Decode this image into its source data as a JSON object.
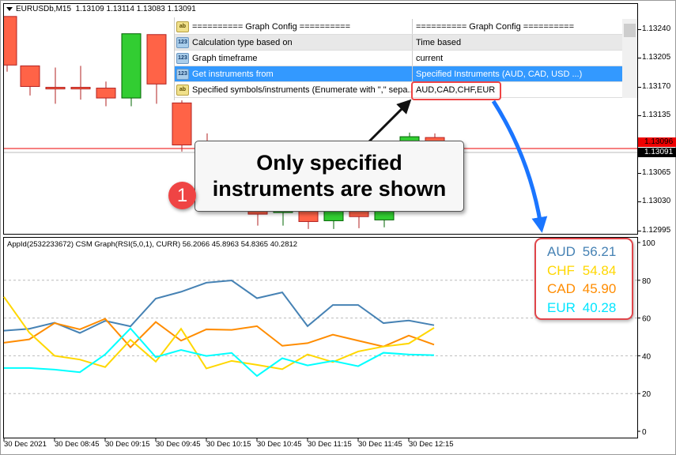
{
  "chart_header": {
    "symbol": "EURUSDb,M15",
    "ohlc": "1.13109 1.13114 1.13083 1.13091"
  },
  "price_axis": {
    "ticks": [
      "1.13240",
      "1.13205",
      "1.13170",
      "1.13135",
      "1.13065",
      "1.13030",
      "1.12995"
    ],
    "bid_label": "1.13096",
    "current_label": "1.13091"
  },
  "colors": {
    "bull": "#32cd32",
    "bear": "#ff6347",
    "AUD": "#4682b4",
    "CHF": "#ffd700",
    "CAD": "#ff8c00",
    "EUR": "#00ffff",
    "highlight": "#ef4444",
    "arrow": "#1a75ff"
  },
  "price_chart": {
    "type": "candlestick",
    "candles": [
      {
        "o": 1.13256,
        "h": 1.13256,
        "l": 1.13189,
        "c": 1.13197
      },
      {
        "o": 1.13196,
        "h": 1.13196,
        "l": 1.1316,
        "c": 1.13171
      },
      {
        "o": 1.1317,
        "h": 1.13194,
        "l": 1.1315,
        "c": 1.13168
      },
      {
        "o": 1.1317,
        "h": 1.13196,
        "l": 1.13155,
        "c": 1.13168
      },
      {
        "o": 1.13169,
        "h": 1.13177,
        "l": 1.13147,
        "c": 1.13157
      },
      {
        "o": 1.13157,
        "h": 1.13235,
        "l": 1.13147,
        "c": 1.13235
      },
      {
        "o": 1.13234,
        "h": 1.13234,
        "l": 1.1315,
        "c": 1.13174
      },
      {
        "o": 1.13151,
        "h": 1.13156,
        "l": 1.13092,
        "c": 1.131
      },
      {
        "o": 1.13099,
        "h": 1.13114,
        "l": 1.13085,
        "c": 1.13093
      },
      {
        "o": 1.13088,
        "h": 1.13105,
        "l": 1.1308,
        "c": 1.13098
      },
      {
        "o": 1.1304,
        "h": 1.1305,
        "l": 1.13002,
        "c": 1.13016
      },
      {
        "o": 1.13018,
        "h": 1.1304,
        "l": 1.13002,
        "c": 1.1303
      },
      {
        "o": 1.13021,
        "h": 1.1303,
        "l": 1.12998,
        "c": 1.13007
      },
      {
        "o": 1.13008,
        "h": 1.13025,
        "l": 1.12998,
        "c": 1.13021
      },
      {
        "o": 1.13021,
        "h": 1.1303,
        "l": 1.12999,
        "c": 1.13013
      },
      {
        "o": 1.13009,
        "h": 1.1303,
        "l": 1.13,
        "c": 1.13021
      },
      {
        "o": 1.13085,
        "h": 1.13115,
        "l": 1.1308,
        "c": 1.1311
      },
      {
        "o": 1.13109,
        "h": 1.13114,
        "l": 1.13083,
        "c": 1.13091
      }
    ]
  },
  "config_panel": {
    "rows": [
      {
        "icon": "ab",
        "name": "========== Graph Config ==========",
        "value": "========== Graph Config =========="
      },
      {
        "icon": "123",
        "name": "Calculation type based on",
        "value": "Time based"
      },
      {
        "icon": "123",
        "name": "Graph timeframe",
        "value": "current"
      },
      {
        "icon": "123",
        "name": "Get instruments from",
        "value": "Specified Instruments (AUD, CAD, USD ...)"
      },
      {
        "icon": "ab",
        "name": "Specified symbols/instruments (Enumerate with \",\" sepa...",
        "value": "AUD,CAD,CHF,EUR"
      }
    ]
  },
  "callout": {
    "line1": "Only specified",
    "line2": "instruments are shown",
    "badge": "1"
  },
  "indicator": {
    "title": "AppId(2532233672) CSM Graph(RSI(5,0,1), CURR) 56.2066 45.8963 54.8365 40.2812"
  },
  "legend": [
    {
      "currency": "AUD",
      "value": "56.21"
    },
    {
      "currency": "CHF",
      "value": "54.84"
    },
    {
      "currency": "CAD",
      "value": "45.90"
    },
    {
      "currency": "EUR",
      "value": "40.28"
    }
  ],
  "chart_data": {
    "type": "line",
    "ylim": [
      0,
      100
    ],
    "y_ticks": [
      "100",
      "80",
      "60",
      "40",
      "20",
      "0"
    ],
    "grid": true,
    "x_tick_labels": [
      "30 Dec 2021",
      "30 Dec 08:45",
      "30 Dec 09:15",
      "30 Dec 09:45",
      "30 Dec 10:15",
      "30 Dec 10:45",
      "30 Dec 11:15",
      "30 Dec 11:45",
      "30 Dec 12:15"
    ],
    "series": [
      {
        "name": "AUD",
        "values": [
          53.3,
          54.3,
          57.5,
          52.1,
          58.5,
          55.6,
          70.3,
          73.9,
          78.7,
          79.9,
          70.5,
          73.6,
          55.7,
          66.9,
          66.9,
          57.3,
          58.7,
          56.2
        ]
      },
      {
        "name": "CAD",
        "values": [
          46.9,
          48.7,
          57.3,
          54.0,
          59.6,
          44.5,
          57.9,
          48.0,
          54.0,
          53.7,
          55.7,
          45.3,
          46.7,
          51.2,
          48.0,
          44.9,
          50.7,
          45.9
        ]
      },
      {
        "name": "CHF",
        "values": [
          71.2,
          52.3,
          40.0,
          38.0,
          34.0,
          48.5,
          36.9,
          54.3,
          33.3,
          37.3,
          35.2,
          32.9,
          40.7,
          36.7,
          42.3,
          44.9,
          46.5,
          54.8
        ]
      },
      {
        "name": "EUR",
        "values": [
          33.5,
          33.5,
          32.7,
          31.3,
          40.7,
          54.5,
          39.3,
          43.1,
          39.9,
          41.5,
          29.3,
          38.7,
          34.9,
          37.3,
          34.5,
          41.6,
          40.7,
          40.3
        ]
      }
    ]
  }
}
